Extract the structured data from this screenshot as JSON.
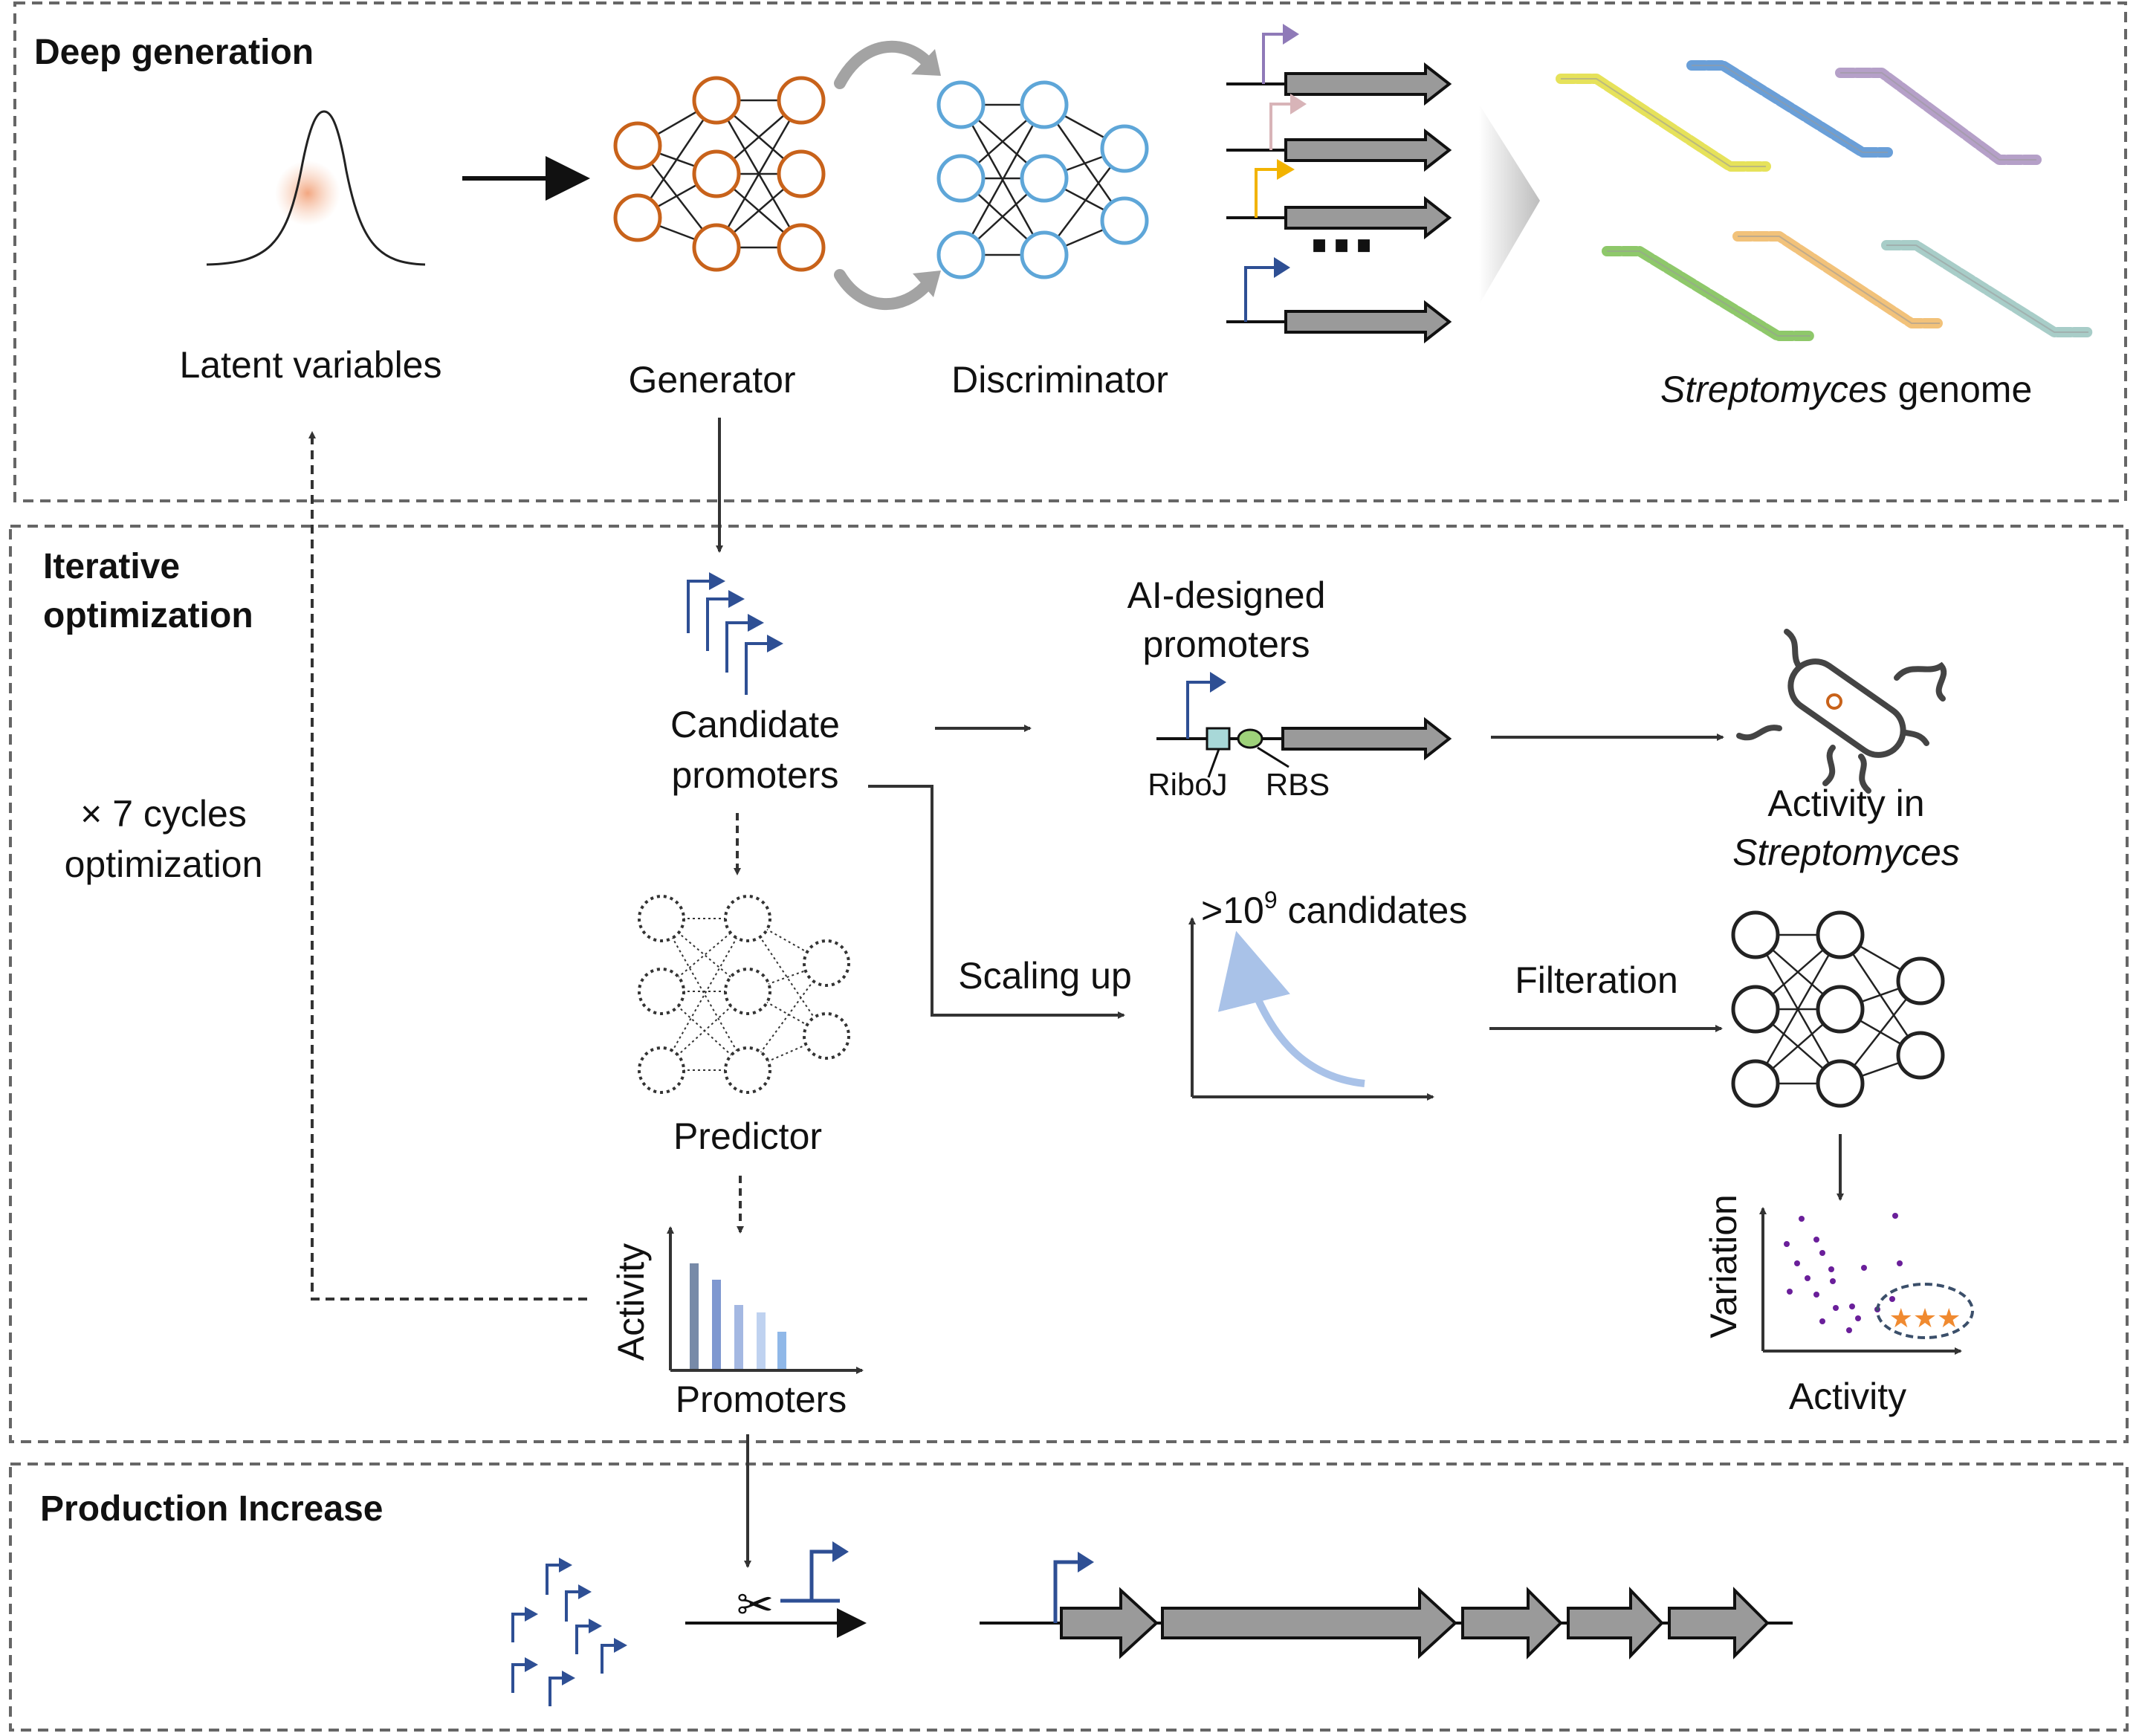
{
  "panels": {
    "deep_generation": {
      "title": "Deep generation",
      "latent_label": "Latent variables",
      "generator_label": "Generator",
      "discriminator_label": "Discriminator",
      "genome_label_italic": "Streptomyces",
      "genome_label_rest": " genome",
      "ellipsis": "⋯"
    },
    "iterative_optimization": {
      "title_line1": "Iterative",
      "title_line2": "optimization",
      "cycles_line1": "× 7 cycles",
      "cycles_line2": "optimization",
      "candidate_line1": "Candidate",
      "candidate_line2": "promoters",
      "ai_line1": "AI-designed",
      "ai_line2": "promoters",
      "riboj": "RiboJ",
      "rbs": "RBS",
      "activity_in": "Activity in",
      "streptomyces": "Streptomyces",
      "predictor": "Predictor",
      "scaling_up": "Scaling up",
      "candidates_prefix": ">10",
      "candidates_exp": "9",
      "candidates_suffix": " candidates",
      "filteration": "Filteration",
      "bar_ylabel": "Activity",
      "bar_xlabel": "Promoters",
      "scatter_ylabel": "Variation",
      "scatter_xlabel": "Activity",
      "stars": "★★★"
    },
    "production_increase": {
      "title": "Production Increase",
      "scissors": "✂"
    }
  },
  "colors": {
    "generator": "#c8621a",
    "discriminator": "#5ea6d8",
    "promoter_blue": "#2e4f94",
    "gene_gray": "#9a9a9a",
    "scatter_dot": "#6a1f9a",
    "star": "#f08a30",
    "track_yellow": "#e6e25a",
    "track_blue": "#6a9fd8",
    "track_purple": "#b5a0c8",
    "track_green": "#8ec86a",
    "track_orange": "#f2c27a",
    "track_teal": "#a8cdc8"
  }
}
